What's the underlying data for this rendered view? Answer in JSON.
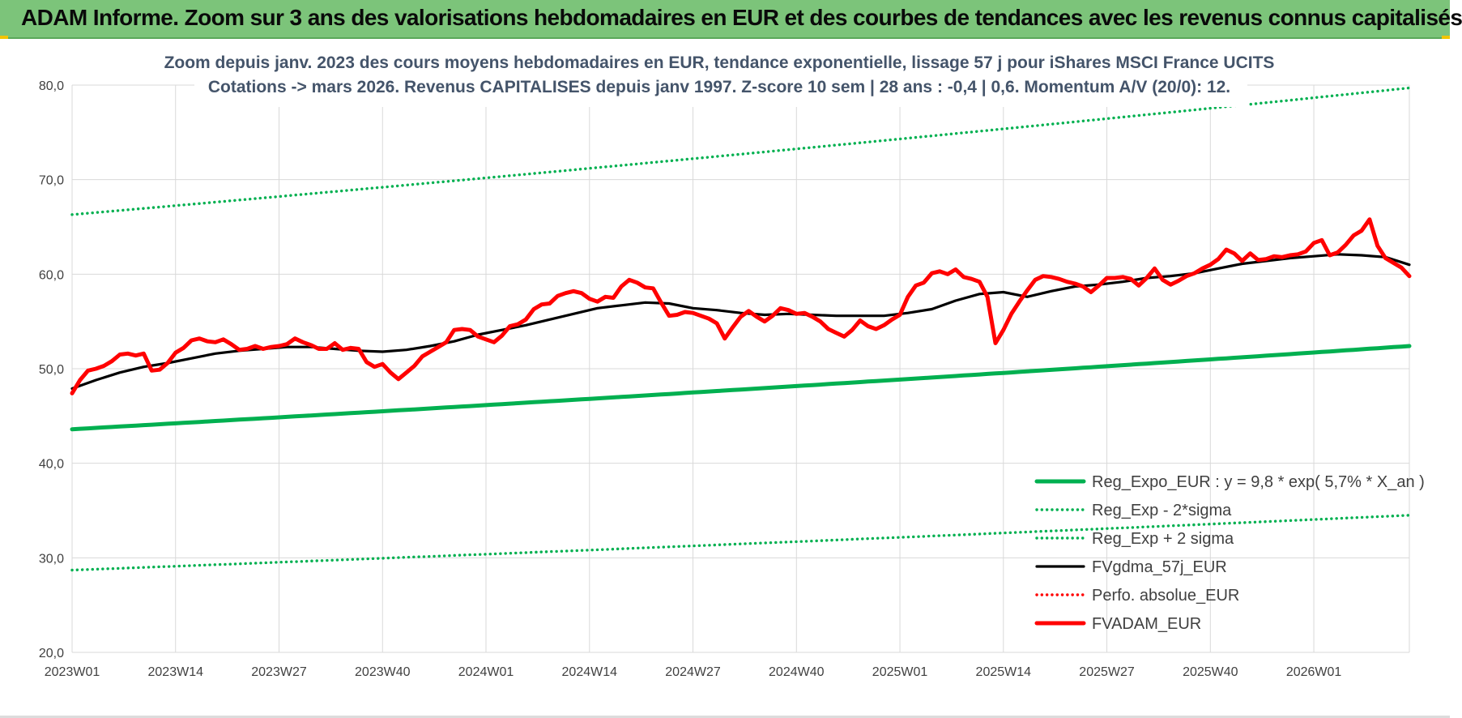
{
  "header": {
    "title": "ADAM Informe. Zoom sur 3 ans des valorisations hebdomadaires en EUR et des courbes de tendances avec les revenus connus capitalisés"
  },
  "colors": {
    "banner": "#7cc47a",
    "trend": "#00b050",
    "price": "#ff0000",
    "smooth": "#000000",
    "grid": "#d9d9d9",
    "subtitle": "#44546a"
  },
  "chart_data": {
    "type": "line",
    "title_lines": [
      "Zoom depuis janv. 2023 des cours moyens hebdomadaires en EUR, tendance exponentielle, lissage 57 j pour iShares MSCI France UCITS",
      "Cotations -> mars 2026. Revenus CAPITALISES depuis janv 1997. Z-score 10 sem | 28 ans : -0,4 | 0,6. Momentum A/V (20/0): 12."
    ],
    "ylim": [
      20,
      80
    ],
    "yticks": [
      20,
      30,
      40,
      50,
      60,
      70,
      80
    ],
    "ytick_labels": [
      "20,0",
      "30,0",
      "40,0",
      "50,0",
      "60,0",
      "70,0",
      "80,0"
    ],
    "xlim": [
      0,
      168
    ],
    "xtick_positions": [
      0,
      13,
      26,
      39,
      52,
      65,
      78,
      91,
      104,
      117,
      130,
      143,
      156
    ],
    "xtick_labels": [
      "2023W01",
      "2023W14",
      "2023W27",
      "2023W40",
      "2024W01",
      "2024W14",
      "2024W27",
      "2024W40",
      "2025W01",
      "2025W14",
      "2025W27",
      "2025W40",
      "2026W01"
    ],
    "grid": true,
    "legend_position": "bottom-right",
    "legend": [
      {
        "label": "Reg_Expo_EUR : y = 9,8 * exp( 5,7% *  X_an )",
        "color": "#00b050",
        "style": "thick"
      },
      {
        "label": "Reg_Exp - 2*sigma",
        "color": "#00b050",
        "style": "dotted"
      },
      {
        "label": "Reg_Exp + 2 sigma",
        "color": "#00b050",
        "style": "dotted"
      },
      {
        "label": "FVgdma_57j_EUR",
        "color": "#000000",
        "style": "solid"
      },
      {
        "label": "Perfo. absolue_EUR",
        "color": "#ff0000",
        "style": "dotted"
      },
      {
        "label": "FVADAM_EUR",
        "color": "#ff0000",
        "style": "thick"
      }
    ],
    "series": [
      {
        "name": "Reg_Expo_EUR : y = 9,8 * exp( 5,7% *  X_an )",
        "color": "#00b050",
        "style": "thick",
        "x": [
          0,
          168
        ],
        "values": [
          43.6,
          52.4
        ],
        "curve": "exp"
      },
      {
        "name": "Reg_Exp - 2*sigma",
        "color": "#00b050",
        "style": "dotted",
        "x": [
          0,
          168
        ],
        "values": [
          28.7,
          34.5
        ],
        "curve": "exp"
      },
      {
        "name": "Reg_Exp + 2 sigma",
        "color": "#00b050",
        "style": "dotted",
        "x": [
          0,
          168
        ],
        "values": [
          66.3,
          79.7
        ],
        "curve": "exp"
      },
      {
        "name": "FVgdma_57j_EUR",
        "color": "#000000",
        "style": "solid",
        "x": [
          0,
          3,
          6,
          9,
          12,
          15,
          18,
          21,
          24,
          27,
          30,
          33,
          36,
          39,
          42,
          45,
          48,
          51,
          54,
          57,
          60,
          63,
          66,
          69,
          72,
          75,
          78,
          81,
          84,
          87,
          90,
          93,
          96,
          99,
          102,
          105,
          108,
          111,
          114,
          117,
          120,
          123,
          126,
          129,
          132,
          135,
          138,
          141,
          144,
          147,
          150,
          153,
          156,
          159,
          162,
          165,
          168
        ],
        "values": [
          47.9,
          48.8,
          49.6,
          50.2,
          50.6,
          51.1,
          51.6,
          51.9,
          52.1,
          52.3,
          52.3,
          52.1,
          51.9,
          51.8,
          52.0,
          52.4,
          52.9,
          53.6,
          54.1,
          54.6,
          55.2,
          55.8,
          56.4,
          56.7,
          57.0,
          56.9,
          56.4,
          56.2,
          55.9,
          55.7,
          55.8,
          55.7,
          55.6,
          55.6,
          55.6,
          55.9,
          56.3,
          57.2,
          57.9,
          58.1,
          57.6,
          58.2,
          58.7,
          58.9,
          59.2,
          59.6,
          59.8,
          60.1,
          60.6,
          61.1,
          61.4,
          61.7,
          61.9,
          62.1,
          62.0,
          61.8,
          61.0
        ]
      },
      {
        "name": "FVADAM_EUR",
        "color": "#ff0000",
        "style": "thick",
        "x": [
          0,
          1,
          2,
          3,
          4,
          5,
          6,
          7,
          8,
          9,
          10,
          11,
          12,
          13,
          14,
          15,
          16,
          17,
          18,
          19,
          20,
          21,
          22,
          23,
          24,
          25,
          26,
          27,
          28,
          29,
          30,
          31,
          32,
          33,
          34,
          35,
          36,
          37,
          38,
          39,
          40,
          41,
          42,
          43,
          44,
          45,
          46,
          47,
          48,
          49,
          50,
          51,
          52,
          53,
          54,
          55,
          56,
          57,
          58,
          59,
          60,
          61,
          62,
          63,
          64,
          65,
          66,
          67,
          68,
          69,
          70,
          71,
          72,
          73,
          74,
          75,
          76,
          77,
          78,
          79,
          80,
          81,
          82,
          83,
          84,
          85,
          86,
          87,
          88,
          89,
          90,
          91,
          92,
          93,
          94,
          95,
          96,
          97,
          98,
          99,
          100,
          101,
          102,
          103,
          104,
          105,
          106,
          107,
          108,
          109,
          110,
          111,
          112,
          113,
          114,
          115,
          116,
          117,
          118,
          119,
          120,
          121,
          122,
          123,
          124,
          125,
          126,
          127,
          128,
          129,
          130,
          131,
          132,
          133,
          134,
          135,
          136,
          137,
          138,
          139,
          140,
          141,
          142,
          143,
          144,
          145,
          146,
          147,
          148,
          149,
          150,
          151,
          152,
          153,
          154,
          155,
          156,
          157,
          158,
          159,
          160,
          161,
          162,
          163,
          164,
          165,
          166,
          167,
          168
        ],
        "values": [
          47.4,
          48.8,
          49.8,
          50.0,
          50.3,
          50.8,
          51.5,
          51.6,
          51.4,
          51.6,
          49.8,
          49.9,
          50.6,
          51.7,
          52.2,
          53.0,
          53.2,
          52.9,
          52.8,
          53.1,
          52.6,
          52.0,
          52.1,
          52.4,
          52.1,
          52.3,
          52.4,
          52.6,
          53.2,
          52.8,
          52.5,
          52.1,
          52.1,
          52.7,
          52.0,
          52.2,
          52.1,
          50.7,
          50.2,
          50.5,
          49.6,
          48.9,
          49.6,
          50.3,
          51.3,
          51.8,
          52.3,
          52.8,
          54.1,
          54.2,
          54.1,
          53.4,
          53.1,
          52.8,
          53.5,
          54.5,
          54.7,
          55.2,
          56.3,
          56.8,
          56.9,
          57.7,
          58.0,
          58.2,
          58.0,
          57.4,
          57.1,
          57.6,
          57.5,
          58.7,
          59.4,
          59.1,
          58.6,
          58.5,
          57.0,
          55.6,
          55.7,
          56.0,
          55.9,
          55.6,
          55.3,
          54.8,
          53.2,
          54.4,
          55.5,
          56.1,
          55.5,
          55.0,
          55.6,
          56.4,
          56.2,
          55.8,
          55.9,
          55.5,
          55.0,
          54.2,
          53.8,
          53.4,
          54.1,
          55.1,
          54.5,
          54.2,
          54.6,
          55.2,
          55.7,
          57.6,
          58.8,
          59.1,
          60.1,
          60.3,
          60.0,
          60.5,
          59.7,
          59.5,
          59.2,
          57.6,
          52.7,
          54.1,
          55.8,
          57.1,
          58.3,
          59.4,
          59.8,
          59.7,
          59.5,
          59.2,
          59.0,
          58.7,
          58.1,
          58.8,
          59.6,
          59.6,
          59.7,
          59.5,
          58.8,
          59.6,
          60.6,
          59.4,
          58.9,
          59.3,
          59.8,
          60.1,
          60.6,
          61.0,
          61.6,
          62.6,
          62.2,
          61.4,
          62.2,
          61.5,
          61.6,
          61.9,
          61.8,
          62.0,
          62.1,
          62.4,
          63.3,
          63.6,
          62.0,
          62.3,
          63.1,
          64.1,
          64.6,
          65.8,
          63.0,
          61.7,
          61.2,
          60.7,
          59.8
        ]
      }
    ]
  }
}
